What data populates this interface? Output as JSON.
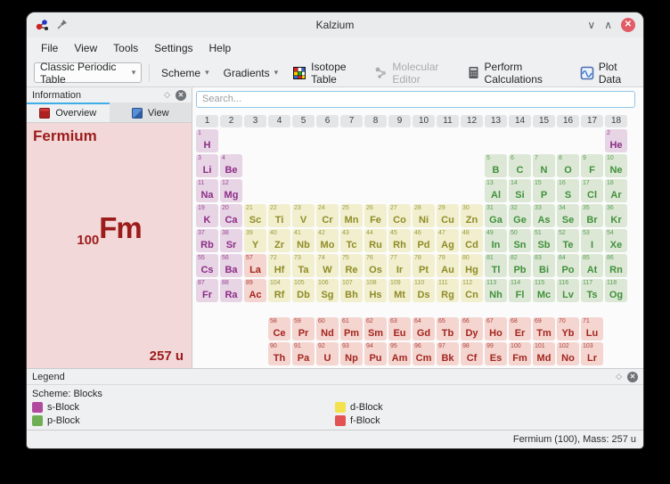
{
  "window": {
    "title": "Kalzium"
  },
  "menu": {
    "items": [
      "File",
      "View",
      "Tools",
      "Settings",
      "Help"
    ]
  },
  "toolbar": {
    "table_select": "Classic Periodic Table",
    "scheme_label": "Scheme",
    "gradients_label": "Gradients",
    "isotope_table_label": "Isotope Table",
    "molecular_editor_label": "Molecular Editor",
    "perform_calculations_label": "Perform Calculations",
    "plot_data_label": "Plot Data"
  },
  "info_panel": {
    "title": "Information",
    "tabs": [
      {
        "label": "Overview"
      },
      {
        "label": "View"
      }
    ],
    "element_name": "Fermium",
    "atomic_number": "100",
    "symbol": "Fm",
    "mass": "257 u"
  },
  "search": {
    "placeholder": "Search..."
  },
  "periodic_table": {
    "groups": [
      "1",
      "2",
      "3",
      "4",
      "5",
      "6",
      "7",
      "8",
      "9",
      "10",
      "11",
      "12",
      "13",
      "14",
      "15",
      "16",
      "17",
      "18"
    ],
    "elements": [
      [
        "H",
        1,
        1,
        1,
        "s"
      ],
      [
        "He",
        2,
        1,
        18,
        "s"
      ],
      [
        "Li",
        3,
        2,
        1,
        "s"
      ],
      [
        "Be",
        4,
        2,
        2,
        "s"
      ],
      [
        "B",
        5,
        2,
        13,
        "p"
      ],
      [
        "C",
        6,
        2,
        14,
        "p"
      ],
      [
        "N",
        7,
        2,
        15,
        "p"
      ],
      [
        "O",
        8,
        2,
        16,
        "p"
      ],
      [
        "F",
        9,
        2,
        17,
        "p"
      ],
      [
        "Ne",
        10,
        2,
        18,
        "p"
      ],
      [
        "Na",
        11,
        3,
        1,
        "s"
      ],
      [
        "Mg",
        12,
        3,
        2,
        "s"
      ],
      [
        "Al",
        13,
        3,
        13,
        "p"
      ],
      [
        "Si",
        14,
        3,
        14,
        "p"
      ],
      [
        "P",
        15,
        3,
        15,
        "p"
      ],
      [
        "S",
        16,
        3,
        16,
        "p"
      ],
      [
        "Cl",
        17,
        3,
        17,
        "p"
      ],
      [
        "Ar",
        18,
        3,
        18,
        "p"
      ],
      [
        "K",
        19,
        4,
        1,
        "s"
      ],
      [
        "Ca",
        20,
        4,
        2,
        "s"
      ],
      [
        "Sc",
        21,
        4,
        3,
        "d"
      ],
      [
        "Ti",
        22,
        4,
        4,
        "d"
      ],
      [
        "V",
        23,
        4,
        5,
        "d"
      ],
      [
        "Cr",
        24,
        4,
        6,
        "d"
      ],
      [
        "Mn",
        25,
        4,
        7,
        "d"
      ],
      [
        "Fe",
        26,
        4,
        8,
        "d"
      ],
      [
        "Co",
        27,
        4,
        9,
        "d"
      ],
      [
        "Ni",
        28,
        4,
        10,
        "d"
      ],
      [
        "Cu",
        29,
        4,
        11,
        "d"
      ],
      [
        "Zn",
        30,
        4,
        12,
        "d"
      ],
      [
        "Ga",
        31,
        4,
        13,
        "p"
      ],
      [
        "Ge",
        32,
        4,
        14,
        "p"
      ],
      [
        "As",
        33,
        4,
        15,
        "p"
      ],
      [
        "Se",
        34,
        4,
        16,
        "p"
      ],
      [
        "Br",
        35,
        4,
        17,
        "p"
      ],
      [
        "Kr",
        36,
        4,
        18,
        "p"
      ],
      [
        "Rb",
        37,
        5,
        1,
        "s"
      ],
      [
        "Sr",
        38,
        5,
        2,
        "s"
      ],
      [
        "Y",
        39,
        5,
        3,
        "d"
      ],
      [
        "Zr",
        40,
        5,
        4,
        "d"
      ],
      [
        "Nb",
        41,
        5,
        5,
        "d"
      ],
      [
        "Mo",
        42,
        5,
        6,
        "d"
      ],
      [
        "Tc",
        43,
        5,
        7,
        "d"
      ],
      [
        "Ru",
        44,
        5,
        8,
        "d"
      ],
      [
        "Rh",
        45,
        5,
        9,
        "d"
      ],
      [
        "Pd",
        46,
        5,
        10,
        "d"
      ],
      [
        "Ag",
        47,
        5,
        11,
        "d"
      ],
      [
        "Cd",
        48,
        5,
        12,
        "d"
      ],
      [
        "In",
        49,
        5,
        13,
        "p"
      ],
      [
        "Sn",
        50,
        5,
        14,
        "p"
      ],
      [
        "Sb",
        51,
        5,
        15,
        "p"
      ],
      [
        "Te",
        52,
        5,
        16,
        "p"
      ],
      [
        "I",
        53,
        5,
        17,
        "p"
      ],
      [
        "Xe",
        54,
        5,
        18,
        "p"
      ],
      [
        "Cs",
        55,
        6,
        1,
        "s"
      ],
      [
        "Ba",
        56,
        6,
        2,
        "s"
      ],
      [
        "La",
        57,
        6,
        3,
        "f"
      ],
      [
        "Hf",
        72,
        6,
        4,
        "d"
      ],
      [
        "Ta",
        73,
        6,
        5,
        "d"
      ],
      [
        "W",
        74,
        6,
        6,
        "d"
      ],
      [
        "Re",
        75,
        6,
        7,
        "d"
      ],
      [
        "Os",
        76,
        6,
        8,
        "d"
      ],
      [
        "Ir",
        77,
        6,
        9,
        "d"
      ],
      [
        "Pt",
        78,
        6,
        10,
        "d"
      ],
      [
        "Au",
        79,
        6,
        11,
        "d"
      ],
      [
        "Hg",
        80,
        6,
        12,
        "d"
      ],
      [
        "Tl",
        81,
        6,
        13,
        "p"
      ],
      [
        "Pb",
        82,
        6,
        14,
        "p"
      ],
      [
        "Bi",
        83,
        6,
        15,
        "p"
      ],
      [
        "Po",
        84,
        6,
        16,
        "p"
      ],
      [
        "At",
        85,
        6,
        17,
        "p"
      ],
      [
        "Rn",
        86,
        6,
        18,
        "p"
      ],
      [
        "Fr",
        87,
        7,
        1,
        "s"
      ],
      [
        "Ra",
        88,
        7,
        2,
        "s"
      ],
      [
        "Ac",
        89,
        7,
        3,
        "f"
      ],
      [
        "Rf",
        104,
        7,
        4,
        "d"
      ],
      [
        "Db",
        105,
        7,
        5,
        "d"
      ],
      [
        "Sg",
        106,
        7,
        6,
        "d"
      ],
      [
        "Bh",
        107,
        7,
        7,
        "d"
      ],
      [
        "Hs",
        108,
        7,
        8,
        "d"
      ],
      [
        "Mt",
        109,
        7,
        9,
        "d"
      ],
      [
        "Ds",
        110,
        7,
        10,
        "d"
      ],
      [
        "Rg",
        111,
        7,
        11,
        "d"
      ],
      [
        "Cn",
        112,
        7,
        12,
        "d"
      ],
      [
        "Nh",
        113,
        7,
        13,
        "p"
      ],
      [
        "Fl",
        114,
        7,
        14,
        "p"
      ],
      [
        "Mc",
        115,
        7,
        15,
        "p"
      ],
      [
        "Lv",
        116,
        7,
        16,
        "p"
      ],
      [
        "Ts",
        117,
        7,
        17,
        "p"
      ],
      [
        "Og",
        118,
        7,
        18,
        "p"
      ],
      [
        "Ce",
        58,
        9,
        4,
        "f"
      ],
      [
        "Pr",
        59,
        9,
        5,
        "f"
      ],
      [
        "Nd",
        60,
        9,
        6,
        "f"
      ],
      [
        "Pm",
        61,
        9,
        7,
        "f"
      ],
      [
        "Sm",
        62,
        9,
        8,
        "f"
      ],
      [
        "Eu",
        63,
        9,
        9,
        "f"
      ],
      [
        "Gd",
        64,
        9,
        10,
        "f"
      ],
      [
        "Tb",
        65,
        9,
        11,
        "f"
      ],
      [
        "Dy",
        66,
        9,
        12,
        "f"
      ],
      [
        "Ho",
        67,
        9,
        13,
        "f"
      ],
      [
        "Er",
        68,
        9,
        14,
        "f"
      ],
      [
        "Tm",
        69,
        9,
        15,
        "f"
      ],
      [
        "Yb",
        70,
        9,
        16,
        "f"
      ],
      [
        "Lu",
        71,
        9,
        17,
        "f"
      ],
      [
        "Th",
        90,
        10,
        4,
        "f"
      ],
      [
        "Pa",
        91,
        10,
        5,
        "f"
      ],
      [
        "U",
        92,
        10,
        6,
        "f"
      ],
      [
        "Np",
        93,
        10,
        7,
        "f"
      ],
      [
        "Pu",
        94,
        10,
        8,
        "f"
      ],
      [
        "Am",
        95,
        10,
        9,
        "f"
      ],
      [
        "Cm",
        96,
        10,
        10,
        "f"
      ],
      [
        "Bk",
        97,
        10,
        11,
        "f"
      ],
      [
        "Cf",
        98,
        10,
        12,
        "f"
      ],
      [
        "Es",
        99,
        10,
        13,
        "f"
      ],
      [
        "Fm",
        100,
        10,
        14,
        "f"
      ],
      [
        "Md",
        101,
        10,
        15,
        "f"
      ],
      [
        "No",
        102,
        10,
        16,
        "f"
      ],
      [
        "Lr",
        103,
        10,
        17,
        "f"
      ]
    ]
  },
  "legend": {
    "title": "Legend",
    "scheme_label": "Scheme: Blocks",
    "items": [
      {
        "label": "s-Block",
        "color": "#b14a9f"
      },
      {
        "label": "d-Block",
        "color": "#f2e24e"
      },
      {
        "label": "p-Block",
        "color": "#6fae53"
      },
      {
        "label": "f-Block",
        "color": "#e25353"
      }
    ]
  },
  "statusbar": {
    "text": "Fermium (100), Mass: 257 u"
  },
  "colors": {
    "block_s_bg": "#e7d4e5",
    "block_s_fg": "#8c2d86",
    "block_p_bg": "#dce8d5",
    "block_p_fg": "#41903c",
    "block_d_bg": "#f1efcd",
    "block_d_fg": "#8f8b28",
    "block_f_bg": "#f4d5d0",
    "block_f_fg": "#a3261f",
    "accent": "#3daee9"
  }
}
